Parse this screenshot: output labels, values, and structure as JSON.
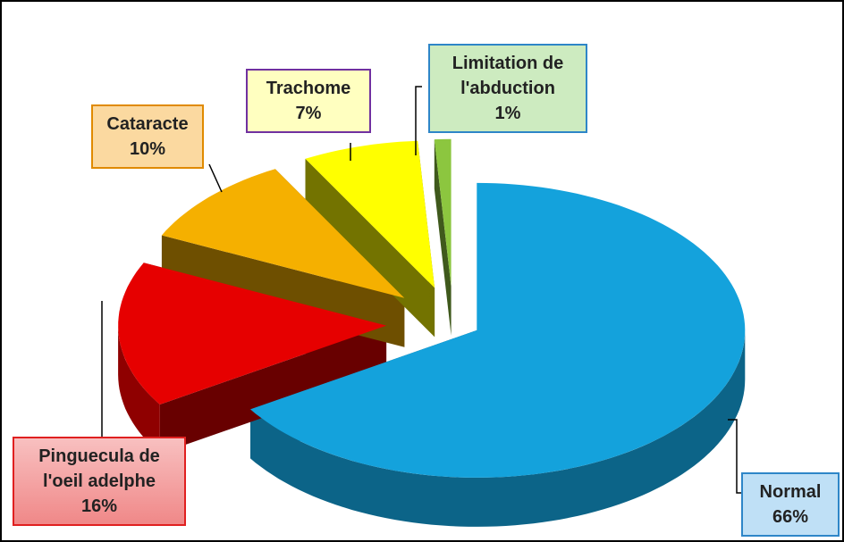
{
  "chart_data": {
    "type": "pie",
    "categories": [
      "Normal",
      "Pinguecula de l'oeil adelphe",
      "Cataracte",
      "Trachome",
      "Limitation de l'abduction"
    ],
    "values": [
      66,
      16,
      10,
      7,
      1
    ],
    "value_labels": [
      "66%",
      "16%",
      "10%",
      "7%",
      "1%"
    ],
    "colors": [
      "#14a2dc",
      "#e60000",
      "#f5b000",
      "#ffff00",
      "#8cc63f"
    ]
  }
}
